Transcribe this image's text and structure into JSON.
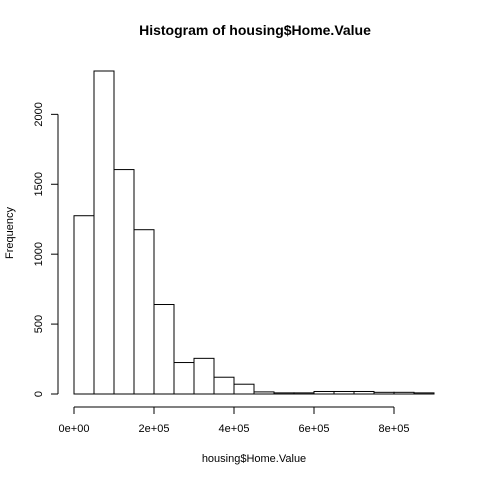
{
  "chart_data": {
    "type": "bar",
    "title": "Histogram of housing$Home.Value",
    "xlabel": "housing$Home.Value",
    "ylabel": "Frequency",
    "bin_width": 50000,
    "x_start": 0,
    "x_end": 900000,
    "bin_values": [
      1275,
      2310,
      1605,
      1175,
      640,
      225,
      255,
      120,
      70,
      15,
      8,
      8,
      18,
      18,
      18,
      12,
      12,
      8
    ],
    "xlim": [
      0,
      900000
    ],
    "ylim": [
      0,
      2310
    ],
    "x_ticks": [
      {
        "value": 0,
        "label": "0e+00"
      },
      {
        "value": 200000,
        "label": "2e+05"
      },
      {
        "value": 400000,
        "label": "4e+05"
      },
      {
        "value": 600000,
        "label": "6e+05"
      },
      {
        "value": 800000,
        "label": "8e+05"
      }
    ],
    "y_ticks": [
      {
        "value": 0,
        "label": "0"
      },
      {
        "value": 500,
        "label": "500"
      },
      {
        "value": 1000,
        "label": "1000"
      },
      {
        "value": 1500,
        "label": "1500"
      },
      {
        "value": 2000,
        "label": "2000"
      }
    ]
  }
}
